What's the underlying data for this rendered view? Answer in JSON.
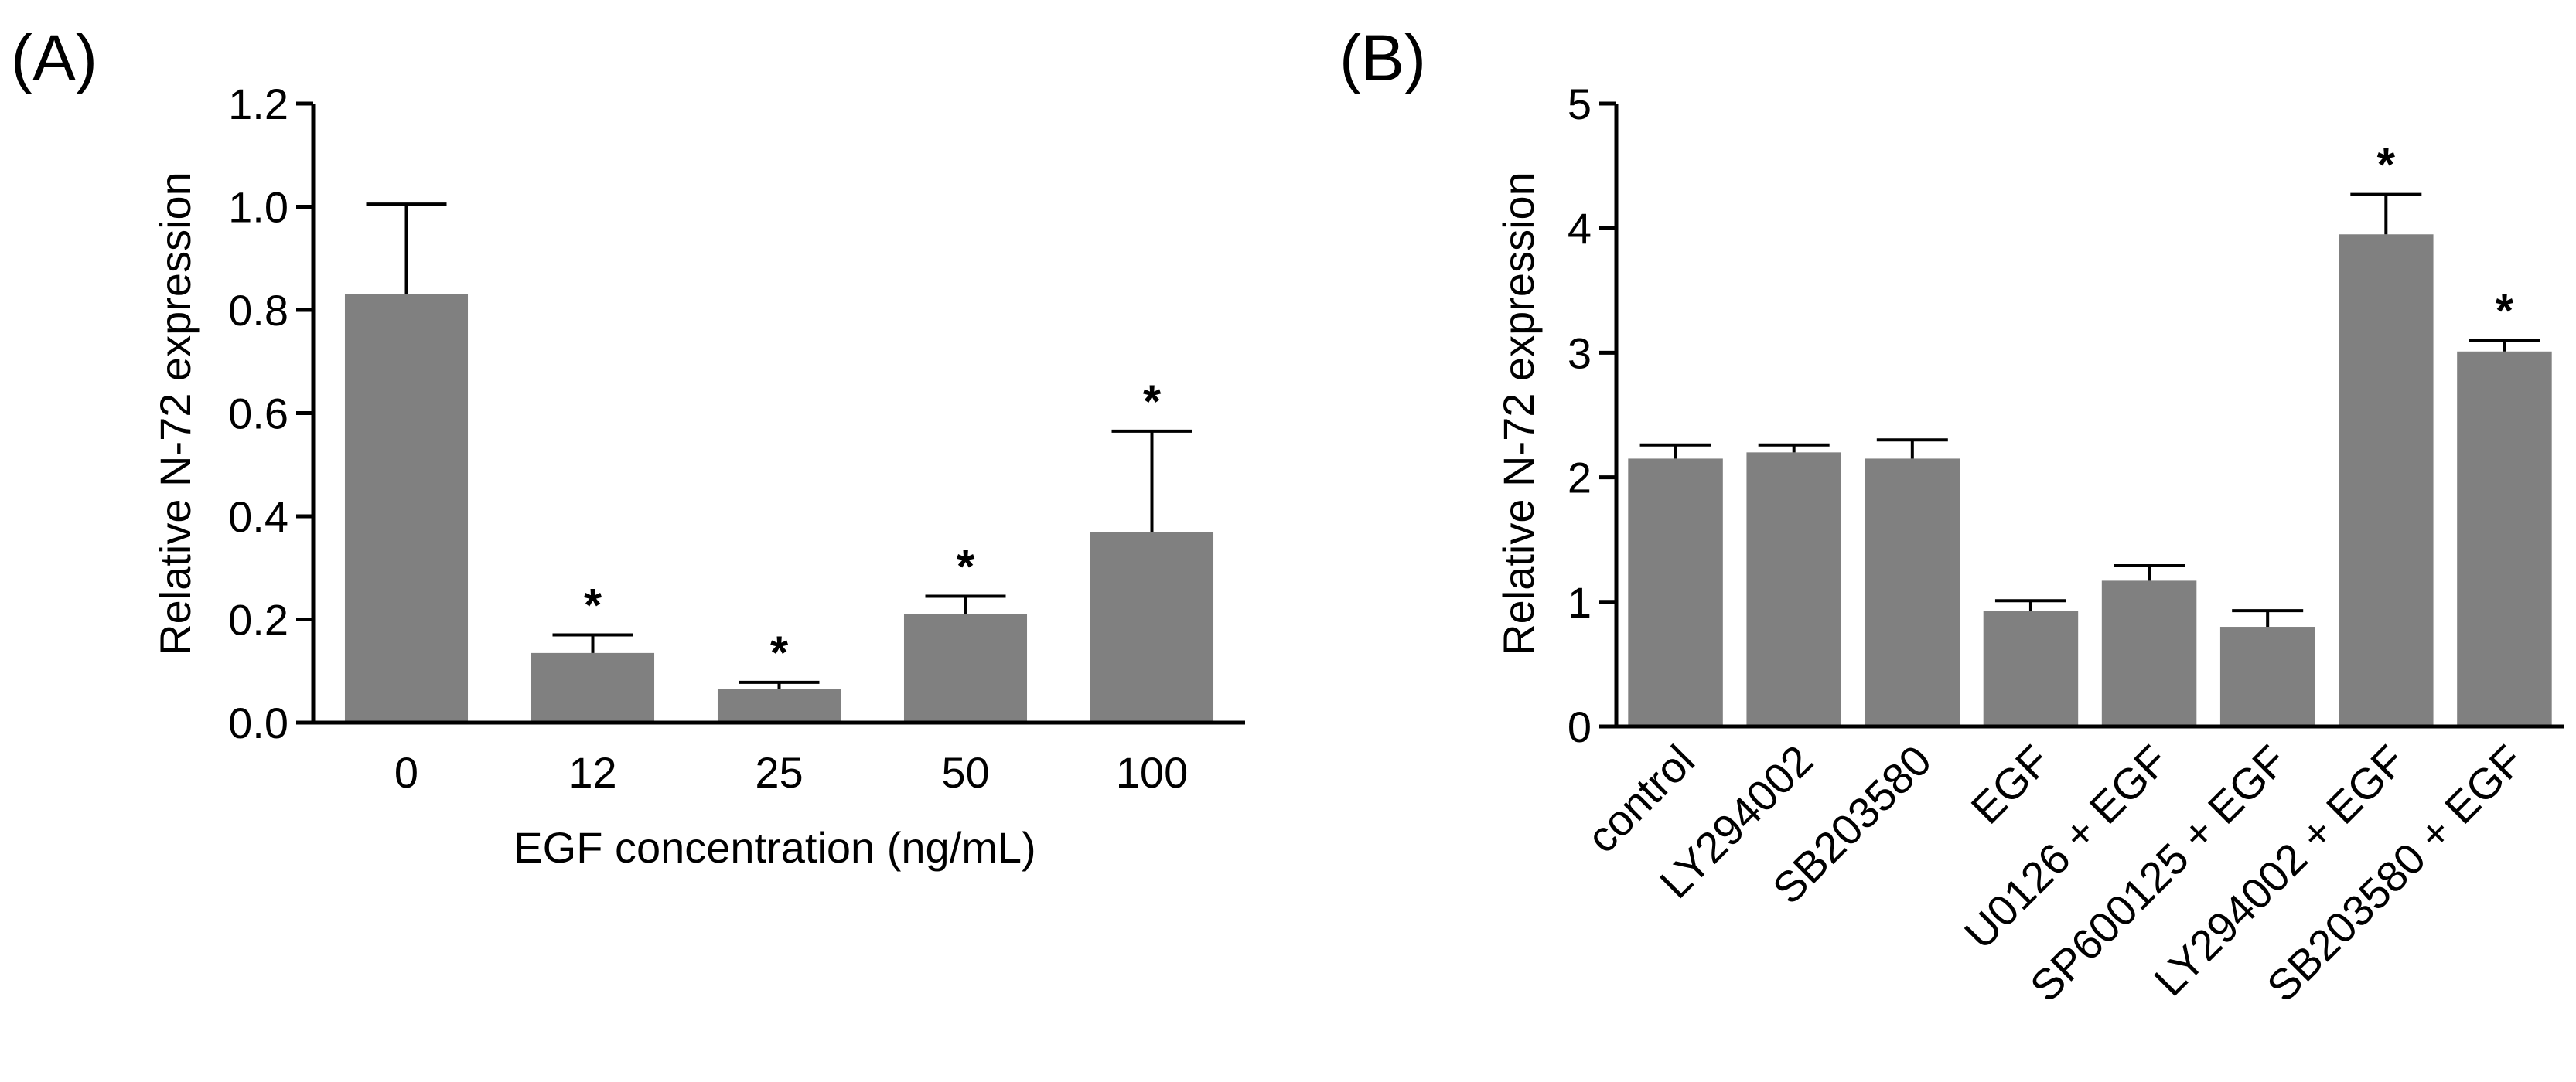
{
  "chart_data": [
    {
      "panel": "(A)",
      "type": "bar",
      "xlabel": "EGF concentration (ng/mL)",
      "ylabel": "Relative N-72 expression",
      "ylim": [
        0,
        1.2
      ],
      "yticks": [
        "0.0",
        "0.2",
        "0.4",
        "0.6",
        "0.8",
        "1.0",
        "1.2"
      ],
      "categories": [
        "0",
        "12",
        "25",
        "50",
        "100"
      ],
      "values": [
        0.83,
        0.135,
        0.065,
        0.21,
        0.37
      ],
      "errors": [
        0.175,
        0.035,
        0.013,
        0.035,
        0.195
      ],
      "significance": [
        "",
        "*",
        "*",
        "*",
        "*"
      ],
      "bar_color": "#808080",
      "grid": false
    },
    {
      "panel": "(B)",
      "type": "bar",
      "xlabel": "",
      "ylabel": "Relative N-72 expression",
      "ylim": [
        0,
        5
      ],
      "yticks": [
        "0",
        "1",
        "2",
        "3",
        "4",
        "5"
      ],
      "categories": [
        "control",
        "LY294002",
        "SB203580",
        "EGF",
        "U0126 + EGF",
        "SP600125 + EGF",
        "LY294002 + EGF",
        "SB203580 + EGF"
      ],
      "values": [
        2.15,
        2.2,
        2.15,
        0.93,
        1.17,
        0.8,
        3.95,
        3.01
      ],
      "errors": [
        0.11,
        0.06,
        0.15,
        0.08,
        0.12,
        0.13,
        0.32,
        0.09
      ],
      "significance": [
        "",
        "",
        "",
        "",
        "",
        "",
        "*",
        "*"
      ],
      "bar_color": "#808080",
      "grid": false
    }
  ]
}
